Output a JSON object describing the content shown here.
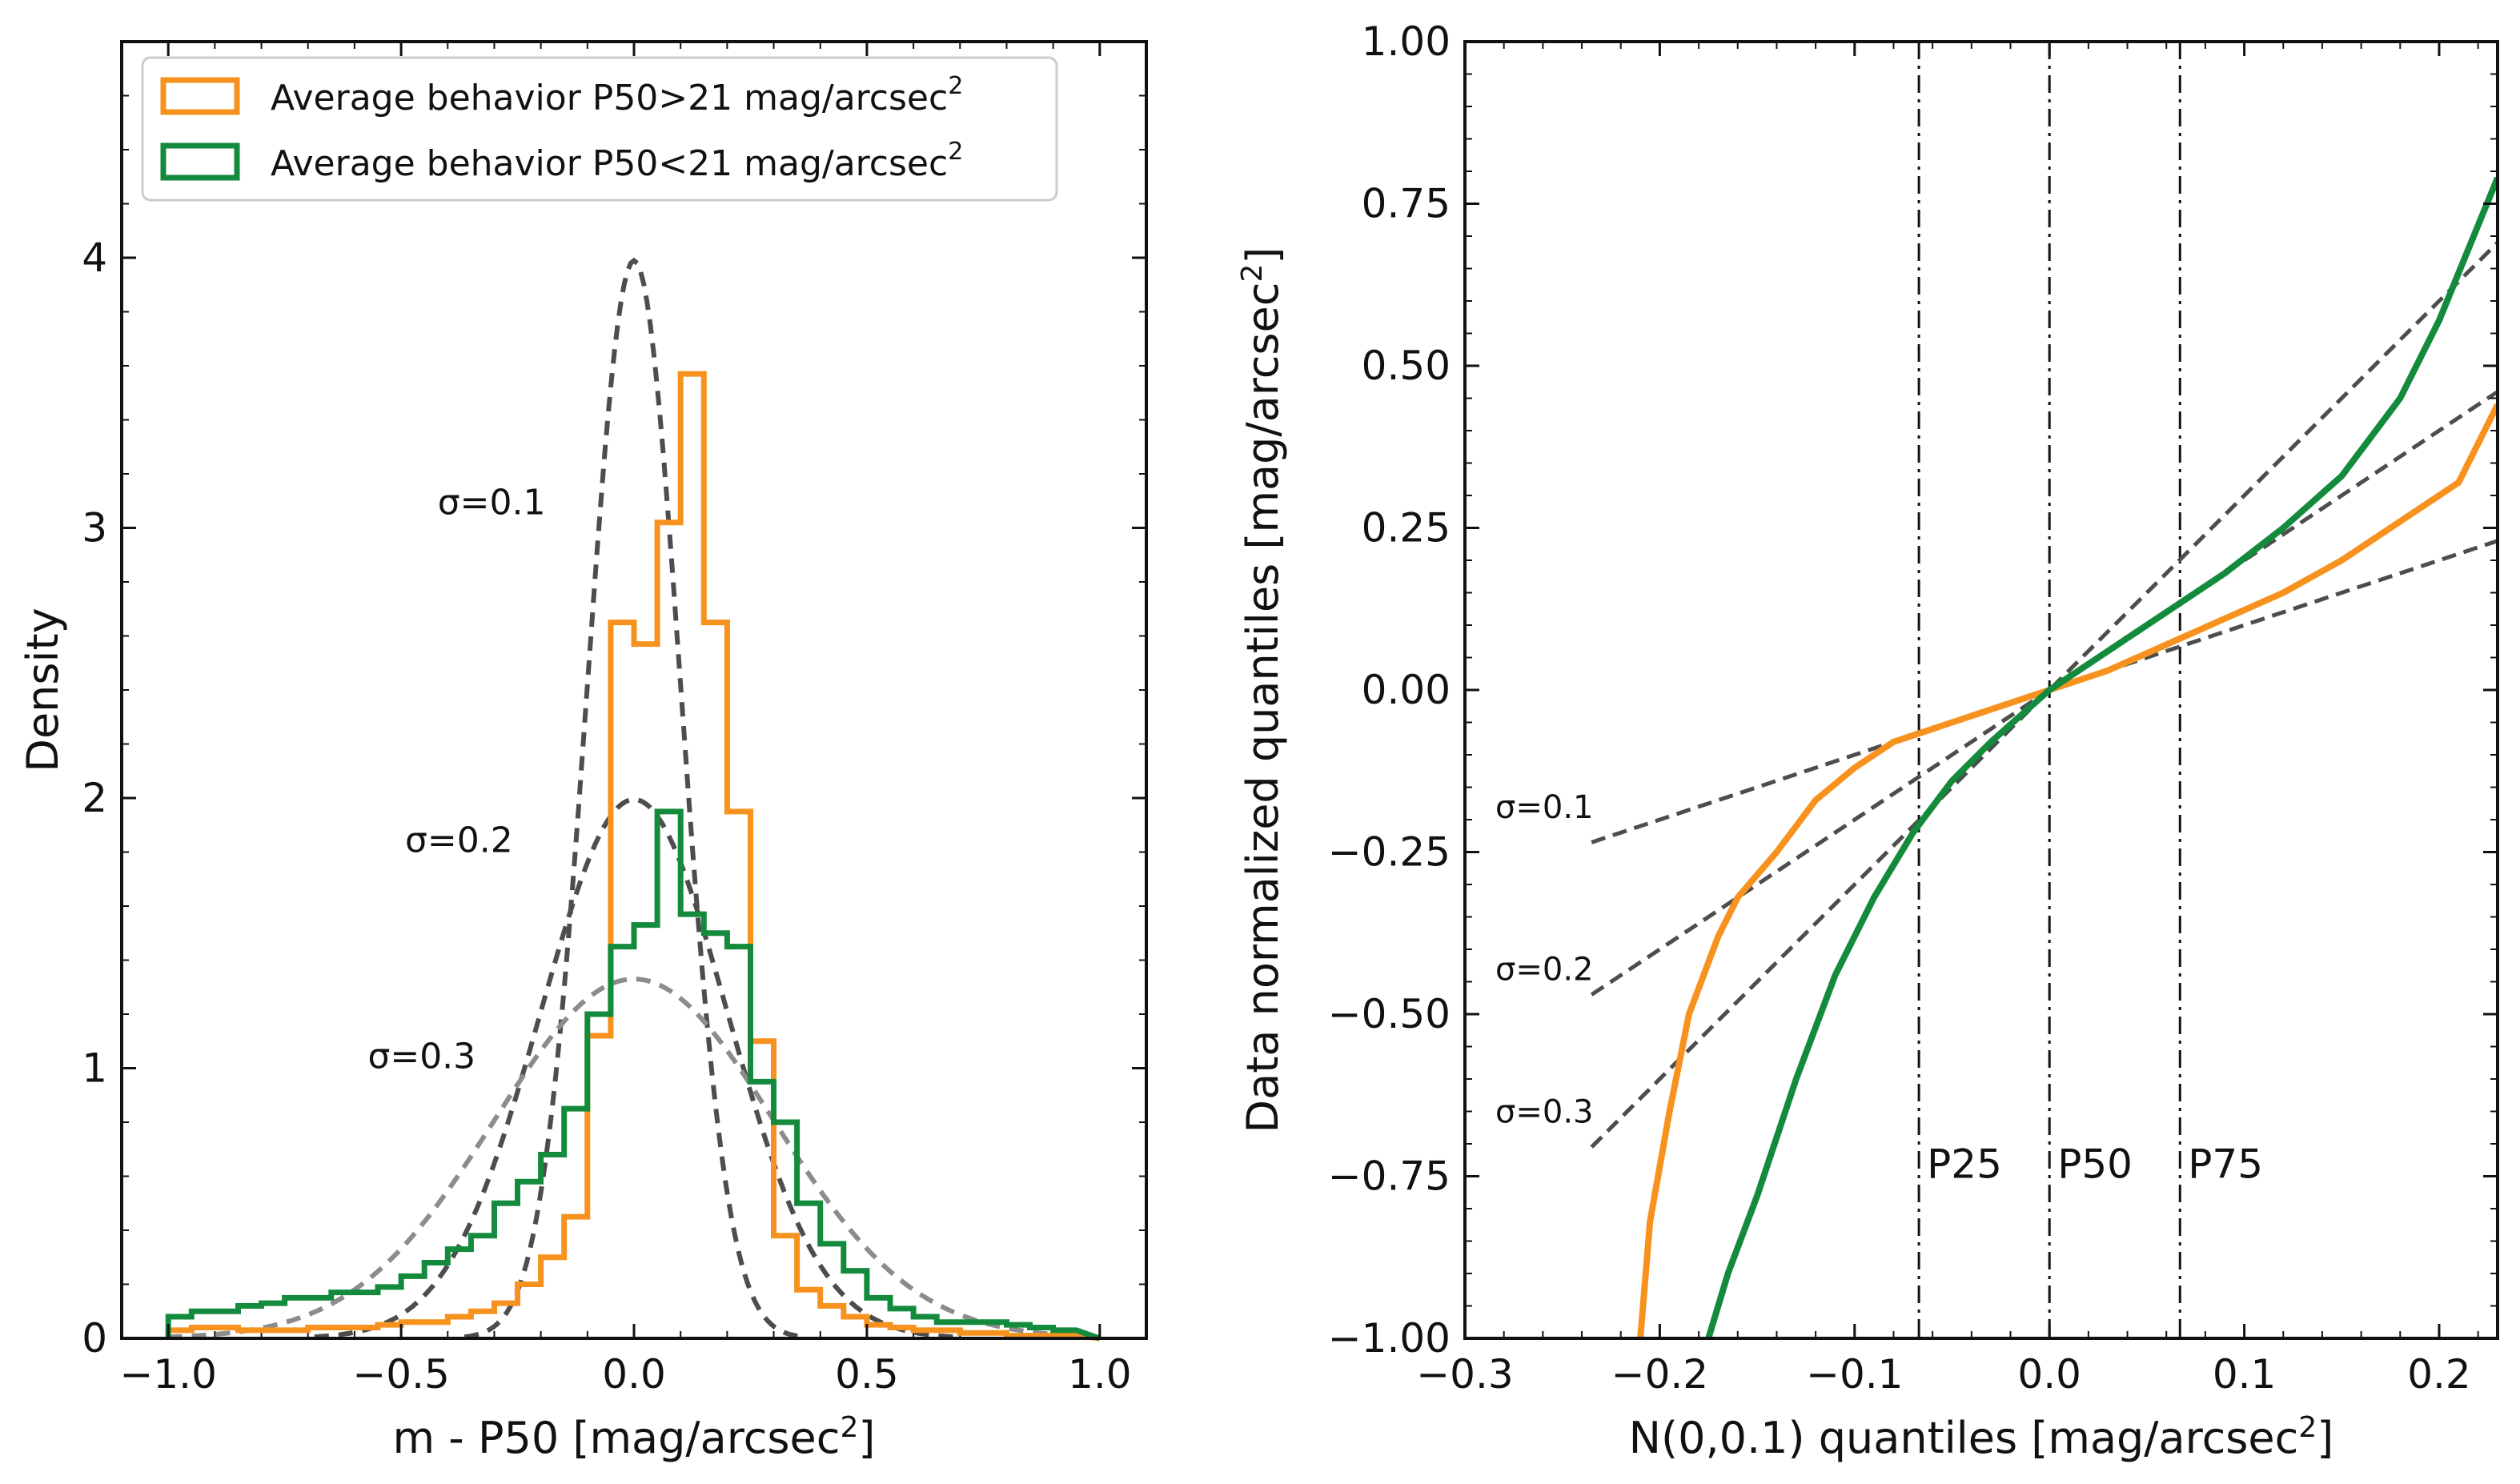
{
  "colors": {
    "orange": "#f7921e",
    "green": "#138a3c",
    "ref": "#4d4d4d",
    "ref_light": "#8c8c8c",
    "axis": "#111111"
  },
  "chart_data": [
    {
      "type": "histogram",
      "xlabel": "m - P50 [mag/arcsec",
      "xlabel_sup": "2",
      "xlabel_end": "]",
      "ylabel": "Density",
      "xlim": [
        -1.1,
        1.1
      ],
      "ylim": [
        0,
        4.8
      ],
      "xticks": [
        -1.0,
        -0.5,
        0.0,
        0.5,
        1.0
      ],
      "xtick_labels": [
        "−1.0",
        "−0.5",
        "0.0",
        "0.5",
        "1.0"
      ],
      "yticks": [
        0,
        1,
        2,
        3,
        4
      ],
      "ytick_labels": [
        "0",
        "1",
        "2",
        "3",
        "4"
      ],
      "legend_position": "upper-left",
      "legend": [
        {
          "text": "Average behavior P50>21 mag/arcsec",
          "sup": "2",
          "color": "#f7921e"
        },
        {
          "text": "Average behavior P50<21 mag/arcsec",
          "sup": "2",
          "color": "#138a3c"
        }
      ],
      "bin_edges": [
        -1.0,
        -0.95,
        -0.9,
        -0.85,
        -0.8,
        -0.75,
        -0.7,
        -0.65,
        -0.6,
        -0.55,
        -0.5,
        -0.45,
        -0.4,
        -0.35,
        -0.3,
        -0.25,
        -0.2,
        -0.15,
        -0.1,
        -0.05,
        0.0,
        0.05,
        0.1,
        0.15,
        0.2,
        0.25,
        0.3,
        0.35,
        0.4,
        0.45,
        0.5,
        0.55,
        0.6,
        0.65,
        0.7,
        0.75,
        0.8,
        0.85,
        0.9,
        0.95
      ],
      "series": [
        {
          "name": "Average behavior P50>21 mag/arcsec2",
          "color": "#f7921e",
          "values": [
            0.03,
            0.04,
            0.04,
            0.03,
            0.03,
            0.03,
            0.04,
            0.04,
            0.04,
            0.05,
            0.06,
            0.06,
            0.08,
            0.1,
            0.13,
            0.2,
            0.3,
            0.45,
            1.12,
            2.65,
            2.57,
            3.02,
            3.57,
            2.65,
            1.95,
            1.1,
            0.38,
            0.18,
            0.12,
            0.08,
            0.05,
            0.04,
            0.03,
            0.03,
            0.02,
            0.02,
            0.01,
            0.01,
            0.01
          ]
        },
        {
          "name": "Average behavior P50<21 mag/arcsec2",
          "color": "#138a3c",
          "values": [
            0.08,
            0.1,
            0.1,
            0.12,
            0.13,
            0.15,
            0.15,
            0.17,
            0.17,
            0.19,
            0.23,
            0.28,
            0.33,
            0.38,
            0.5,
            0.58,
            0.68,
            0.85,
            1.2,
            1.45,
            1.53,
            1.95,
            1.57,
            1.5,
            1.45,
            0.95,
            0.8,
            0.5,
            0.35,
            0.25,
            0.15,
            0.11,
            0.08,
            0.06,
            0.06,
            0.06,
            0.05,
            0.04,
            0.03
          ]
        }
      ],
      "reference_curves": [
        {
          "name": "sigma=0.1",
          "sigma": 0.1,
          "color": "#4d4d4d"
        },
        {
          "name": "sigma=0.2",
          "sigma": 0.2,
          "color": "#4d4d4d"
        },
        {
          "name": "sigma=0.3",
          "sigma": 0.3,
          "color": "#8c8c8c"
        }
      ],
      "annotations": [
        {
          "text": "σ=0.1",
          "x": -0.19,
          "y": 3.05
        },
        {
          "text": "σ=0.2",
          "x": -0.26,
          "y": 1.8
        },
        {
          "text": "σ=0.3",
          "x": -0.34,
          "y": 1.0
        }
      ]
    },
    {
      "type": "line",
      "xlabel": "N(0,0.1) quantiles [mag/arcsec",
      "xlabel_sup": "2",
      "xlabel_end": "]",
      "ylabel": "Data normalized quantiles [mag/arcsec",
      "ylabel_sup": "2",
      "ylabel_end": "]",
      "xlim": [
        -0.3,
        0.23
      ],
      "ylim": [
        -1.0,
        1.0
      ],
      "xticks": [
        -0.3,
        -0.2,
        -0.1,
        0.0,
        0.1,
        0.2
      ],
      "xtick_labels": [
        "−0.3",
        "−0.2",
        "−0.1",
        "0.0",
        "0.1",
        "0.2"
      ],
      "yticks": [
        -1.0,
        -0.75,
        -0.5,
        -0.25,
        0.0,
        0.25,
        0.5,
        0.75,
        1.0
      ],
      "ytick_labels": [
        "−1.00",
        "−0.75",
        "−0.50",
        "−0.25",
        "0.00",
        "0.25",
        "0.50",
        "0.75",
        "1.00"
      ],
      "series": [
        {
          "name": "Average behavior P50>21 mag/arcsec2",
          "color": "#f7921e",
          "x": [
            -0.21,
            -0.205,
            -0.195,
            -0.185,
            -0.17,
            -0.16,
            -0.14,
            -0.12,
            -0.1,
            -0.08,
            -0.05,
            -0.02,
            0.0,
            0.03,
            0.06,
            0.09,
            0.12,
            0.15,
            0.18,
            0.21,
            0.23
          ],
          "y": [
            -1.0,
            -0.82,
            -0.65,
            -0.5,
            -0.38,
            -0.32,
            -0.25,
            -0.17,
            -0.12,
            -0.08,
            -0.05,
            -0.02,
            0.0,
            0.03,
            0.07,
            0.11,
            0.15,
            0.2,
            0.26,
            0.32,
            0.44
          ]
        },
        {
          "name": "Average behavior P50<21 mag/arcsec2",
          "color": "#138a3c",
          "x": [
            -0.175,
            -0.165,
            -0.15,
            -0.13,
            -0.11,
            -0.09,
            -0.07,
            -0.05,
            -0.03,
            -0.015,
            0.0,
            0.03,
            0.06,
            0.09,
            0.12,
            0.15,
            0.18,
            0.2,
            0.215,
            0.23
          ],
          "y": [
            -1.0,
            -0.9,
            -0.78,
            -0.6,
            -0.44,
            -0.32,
            -0.22,
            -0.14,
            -0.08,
            -0.04,
            0.0,
            0.06,
            0.12,
            0.18,
            0.25,
            0.33,
            0.45,
            0.57,
            0.68,
            0.79
          ]
        }
      ],
      "reference_lines": [
        {
          "name": "sigma=0.1",
          "slope": 1,
          "x_range": [
            -0.235,
            0.23
          ],
          "color": "#4d4d4d"
        },
        {
          "name": "sigma=0.2",
          "slope": 2,
          "x_range": [
            -0.235,
            0.23
          ],
          "color": "#4d4d4d"
        },
        {
          "name": "sigma=0.3",
          "slope": 3,
          "x_range": [
            -0.235,
            0.23
          ],
          "color": "#4d4d4d"
        }
      ],
      "vertical_lines": [
        {
          "name": "P25",
          "x": -0.067
        },
        {
          "name": "P50",
          "x": 0.0
        },
        {
          "name": "P75",
          "x": 0.067
        }
      ],
      "vline_label_y": -0.73,
      "annotations": [
        {
          "text": "σ=0.1",
          "x": -0.29,
          "y": -0.18
        },
        {
          "text": "σ=0.2",
          "x": -0.29,
          "y": -0.43
        },
        {
          "text": "σ=0.3",
          "x": -0.29,
          "y": -0.65
        }
      ]
    }
  ]
}
